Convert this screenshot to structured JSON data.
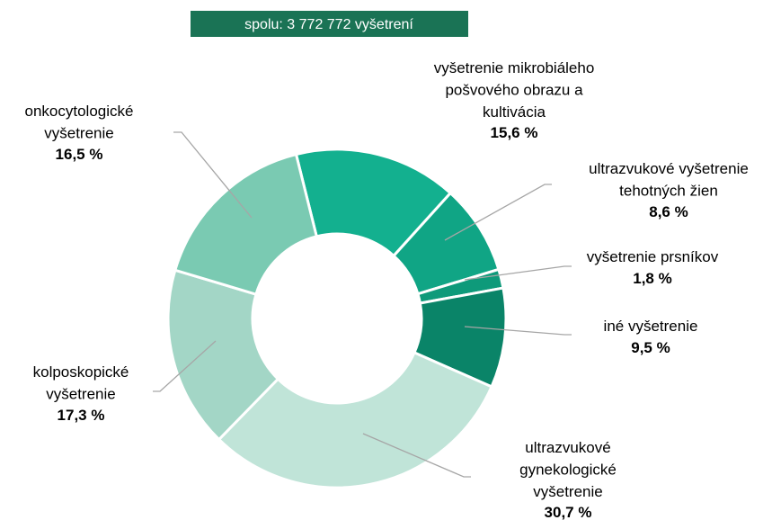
{
  "chart_data": {
    "type": "donut",
    "title": "spolu: 3 772 772 vyšetrení",
    "categories": [
      "vyšetrenie mikrobiáleho pošvového obrazu a kultivácia",
      "ultrazvukové vyšetrenie tehotných žien",
      "vyšetrenie prsníkov",
      "iné vyšetrenie",
      "ultrazvukové gynekologické vyšetrenie",
      "kolposkopické vyšetrenie",
      "onkocytologické vyšetrenie"
    ],
    "values": [
      15.6,
      8.6,
      1.8,
      9.5,
      30.7,
      17.3,
      16.5
    ],
    "value_labels": [
      "15,6 %",
      "8,6 %",
      "1,8 %",
      "9,5 %",
      "30,7 %",
      "17,3 %",
      "16,5 %"
    ],
    "colors": [
      "#13b08f",
      "#10a585",
      "#0e9a7a",
      "#0a8468",
      "#c0e4d8",
      "#a3d6c6",
      "#7acab2"
    ]
  }
}
